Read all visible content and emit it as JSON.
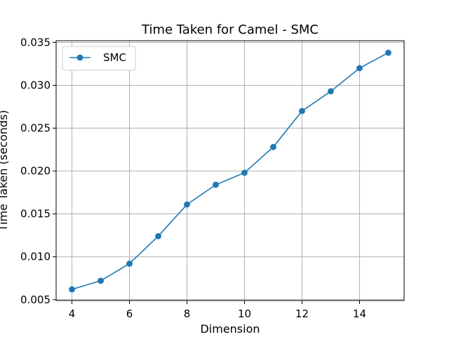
{
  "chart_data": {
    "type": "line",
    "title": "Time Taken for Camel - SMC",
    "xlabel": "Dimension",
    "ylabel": "Time Taken (seconds)",
    "x": [
      4,
      5,
      6,
      7,
      8,
      9,
      10,
      11,
      12,
      13,
      14,
      15
    ],
    "series": [
      {
        "name": "SMC",
        "values": [
          0.0062,
          0.0072,
          0.0092,
          0.0124,
          0.0161,
          0.0184,
          0.0198,
          0.0228,
          0.027,
          0.0293,
          0.032,
          0.0338
        ],
        "color": "#1f77b4",
        "marker": "circle"
      }
    ],
    "xlim": [
      3.45,
      15.55
    ],
    "ylim": [
      0.0049,
      0.0352
    ],
    "xticks": [
      4,
      6,
      8,
      10,
      12,
      14
    ],
    "xtick_labels": [
      "4",
      "6",
      "8",
      "10",
      "12",
      "14"
    ],
    "yticks": [
      0.005,
      0.01,
      0.015,
      0.02,
      0.025,
      0.03,
      0.035
    ],
    "ytick_labels": [
      "0.005",
      "0.010",
      "0.015",
      "0.020",
      "0.025",
      "0.030",
      "0.035"
    ],
    "grid": true,
    "legend": "top-left"
  }
}
